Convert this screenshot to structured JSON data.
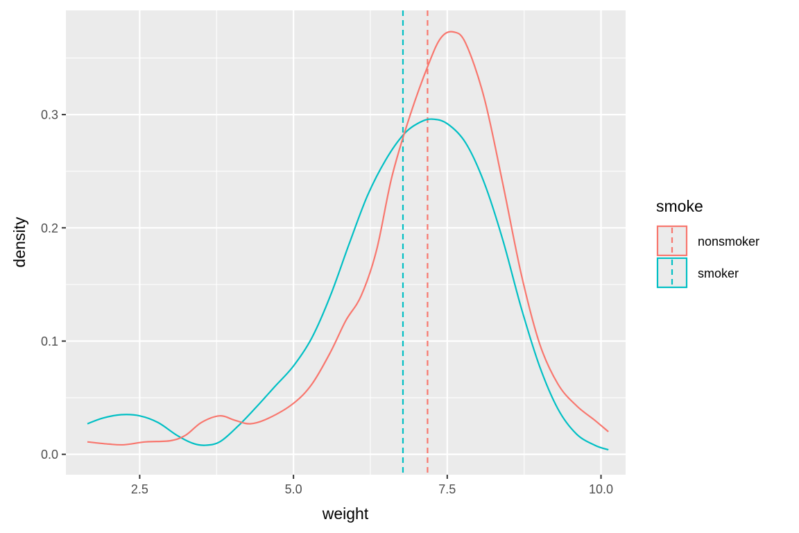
{
  "chart_data": {
    "type": "line",
    "subtype": "density",
    "xlabel": "weight",
    "ylabel": "density",
    "xlim": [
      1.3,
      10.4
    ],
    "ylim": [
      -0.018,
      0.392
    ],
    "x_ticks": [
      2.5,
      5.0,
      7.5,
      10.0
    ],
    "x_tick_labels": [
      "2.5",
      "5.0",
      "7.5",
      "10.0"
    ],
    "y_ticks": [
      0.0,
      0.1,
      0.2,
      0.3
    ],
    "y_tick_labels": [
      "0.0",
      "0.1",
      "0.2",
      "0.3"
    ],
    "grid": true,
    "legend": {
      "title": "smoke",
      "position": "right"
    },
    "series": [
      {
        "name": "nonsmoker",
        "color": "#F8766D",
        "mean_line": 7.18,
        "points": [
          [
            1.65,
            0.011
          ],
          [
            2.0,
            0.009
          ],
          [
            2.25,
            0.0085
          ],
          [
            2.6,
            0.011
          ],
          [
            3.0,
            0.012
          ],
          [
            3.25,
            0.017
          ],
          [
            3.5,
            0.028
          ],
          [
            3.8,
            0.034
          ],
          [
            4.05,
            0.03
          ],
          [
            4.3,
            0.027
          ],
          [
            4.6,
            0.032
          ],
          [
            5.0,
            0.045
          ],
          [
            5.3,
            0.062
          ],
          [
            5.6,
            0.09
          ],
          [
            5.85,
            0.118
          ],
          [
            6.1,
            0.14
          ],
          [
            6.35,
            0.18
          ],
          [
            6.6,
            0.245
          ],
          [
            6.9,
            0.3
          ],
          [
            7.2,
            0.345
          ],
          [
            7.4,
            0.368
          ],
          [
            7.6,
            0.373
          ],
          [
            7.8,
            0.363
          ],
          [
            8.1,
            0.315
          ],
          [
            8.4,
            0.24
          ],
          [
            8.7,
            0.16
          ],
          [
            9.0,
            0.098
          ],
          [
            9.3,
            0.062
          ],
          [
            9.6,
            0.043
          ],
          [
            9.9,
            0.03
          ],
          [
            10.12,
            0.02
          ]
        ]
      },
      {
        "name": "smoker",
        "color": "#00BFC4",
        "mean_line": 6.78,
        "points": [
          [
            1.65,
            0.027
          ],
          [
            1.9,
            0.032
          ],
          [
            2.2,
            0.035
          ],
          [
            2.5,
            0.034
          ],
          [
            2.8,
            0.028
          ],
          [
            3.1,
            0.017
          ],
          [
            3.35,
            0.01
          ],
          [
            3.55,
            0.008
          ],
          [
            3.8,
            0.011
          ],
          [
            4.1,
            0.025
          ],
          [
            4.4,
            0.042
          ],
          [
            4.7,
            0.06
          ],
          [
            5.0,
            0.078
          ],
          [
            5.3,
            0.103
          ],
          [
            5.6,
            0.14
          ],
          [
            5.9,
            0.185
          ],
          [
            6.2,
            0.228
          ],
          [
            6.5,
            0.26
          ],
          [
            6.8,
            0.283
          ],
          [
            7.05,
            0.293
          ],
          [
            7.25,
            0.296
          ],
          [
            7.5,
            0.292
          ],
          [
            7.8,
            0.275
          ],
          [
            8.1,
            0.24
          ],
          [
            8.4,
            0.19
          ],
          [
            8.7,
            0.13
          ],
          [
            9.0,
            0.078
          ],
          [
            9.3,
            0.04
          ],
          [
            9.6,
            0.018
          ],
          [
            9.9,
            0.008
          ],
          [
            10.12,
            0.004
          ]
        ]
      }
    ]
  }
}
